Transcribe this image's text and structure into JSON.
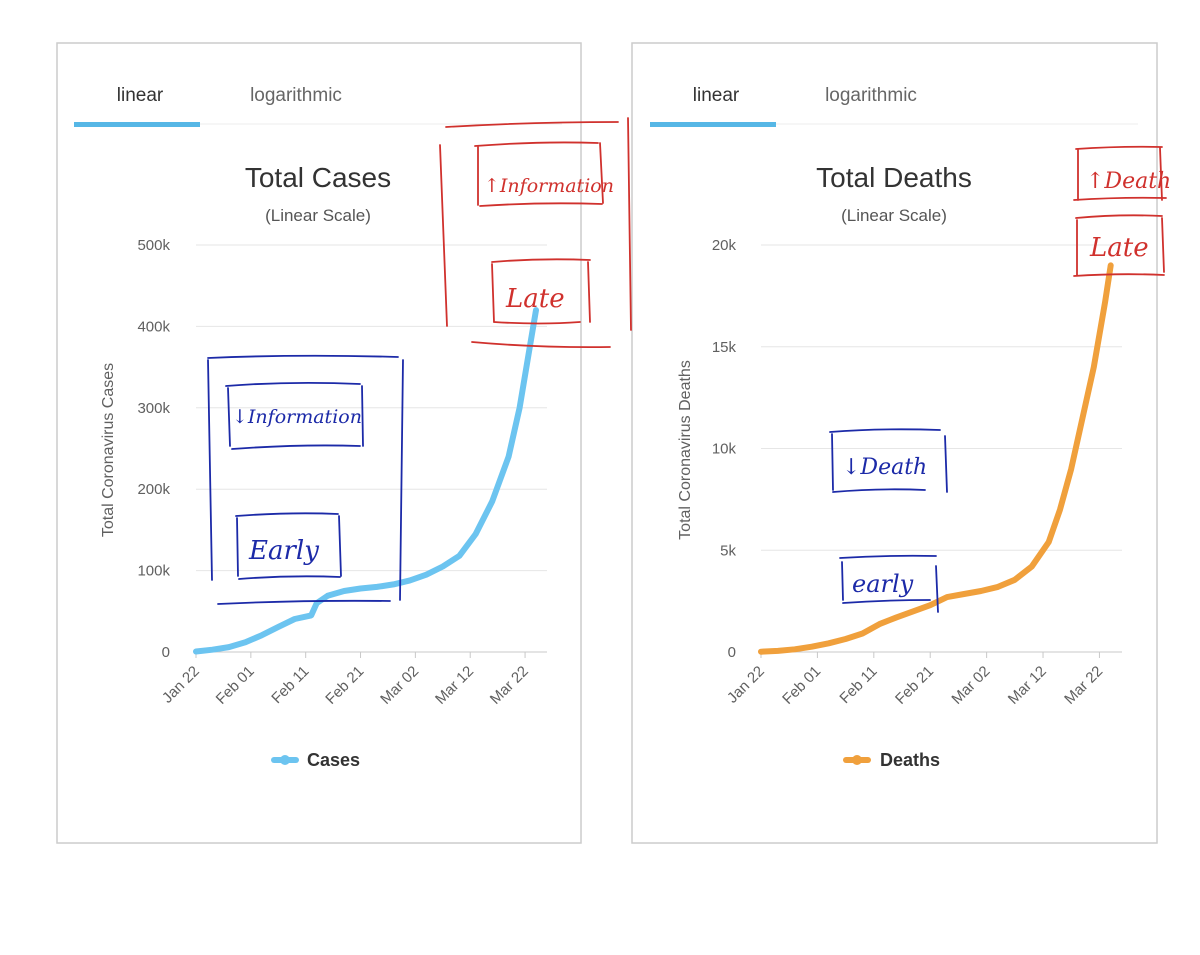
{
  "panels": [
    {
      "tabs": [
        {
          "label": "linear",
          "active": true
        },
        {
          "label": "logarithmic",
          "active": false
        }
      ],
      "title": "Total Cases",
      "subtitle": "(Linear Scale)",
      "legend": "Cases",
      "color": "#6cc4f0"
    },
    {
      "tabs": [
        {
          "label": "linear",
          "active": true
        },
        {
          "label": "logarithmic",
          "active": false
        }
      ],
      "title": "Total Deaths",
      "subtitle": "(Linear Scale)",
      "legend": "Deaths",
      "color": "#f0a03c"
    }
  ],
  "accent_color": "#56b7e6",
  "annotations": {
    "cases_upper": "↑Information",
    "cases_late": "Late",
    "cases_lower": "↓Information",
    "cases_early": "Early",
    "deaths_upper": "↑Death",
    "deaths_late": "Late",
    "deaths_lower": "↓Death",
    "deaths_early": "early",
    "red_ink": "#d0312d",
    "blue_ink": "#1c2aa8"
  },
  "chart_data": [
    {
      "type": "line",
      "title": "Total Cases",
      "subtitle": "(Linear Scale)",
      "xlabel": "",
      "ylabel": "Total Coronavirus Cases",
      "x_ticks": [
        "Jan 22",
        "Feb 01",
        "Feb 11",
        "Feb 21",
        "Mar 02",
        "Mar 12",
        "Mar 22"
      ],
      "y_ticks": [
        "0",
        "100k",
        "200k",
        "300k",
        "400k",
        "500k"
      ],
      "ylim": [
        0,
        500000
      ],
      "grid": true,
      "legend": "bottom-center",
      "series": [
        {
          "name": "Cases",
          "x": [
            "Jan 22",
            "Jan 25",
            "Jan 28",
            "Jan 31",
            "Feb 03",
            "Feb 06",
            "Feb 09",
            "Feb 12",
            "Feb 13",
            "Feb 15",
            "Feb 18",
            "Feb 21",
            "Feb 24",
            "Feb 27",
            "Mar 01",
            "Mar 04",
            "Mar 07",
            "Mar 10",
            "Mar 13",
            "Mar 16",
            "Mar 19",
            "Mar 21",
            "Mar 23",
            "Mar 24"
          ],
          "values": [
            580,
            2800,
            6000,
            11900,
            20600,
            30800,
            40600,
            45000,
            60000,
            69000,
            75000,
            78000,
            80000,
            83000,
            88000,
            95000,
            105000,
            118000,
            145000,
            185000,
            240000,
            300000,
            380000,
            420000
          ]
        }
      ]
    },
    {
      "type": "line",
      "title": "Total Deaths",
      "subtitle": "(Linear Scale)",
      "xlabel": "",
      "ylabel": "Total Coronavirus Deaths",
      "x_ticks": [
        "Jan 22",
        "Feb 01",
        "Feb 11",
        "Feb 21",
        "Mar 02",
        "Mar 12",
        "Mar 22"
      ],
      "y_ticks": [
        "0",
        "5k",
        "10k",
        "15k",
        "20k"
      ],
      "ylim": [
        0,
        20000
      ],
      "grid": true,
      "legend": "bottom-center",
      "series": [
        {
          "name": "Deaths",
          "x": [
            "Jan 22",
            "Jan 25",
            "Jan 28",
            "Jan 31",
            "Feb 03",
            "Feb 06",
            "Feb 09",
            "Feb 12",
            "Feb 15",
            "Feb 18",
            "Feb 21",
            "Feb 24",
            "Feb 27",
            "Mar 01",
            "Mar 04",
            "Mar 07",
            "Mar 10",
            "Mar 13",
            "Mar 15",
            "Mar 17",
            "Mar 19",
            "Mar 21",
            "Mar 23",
            "Mar 24"
          ],
          "values": [
            17,
            56,
            132,
            259,
            427,
            637,
            910,
            1370,
            1700,
            2000,
            2300,
            2700,
            2850,
            3000,
            3200,
            3550,
            4200,
            5400,
            7000,
            9000,
            11500,
            14000,
            17200,
            19000
          ]
        }
      ]
    }
  ]
}
